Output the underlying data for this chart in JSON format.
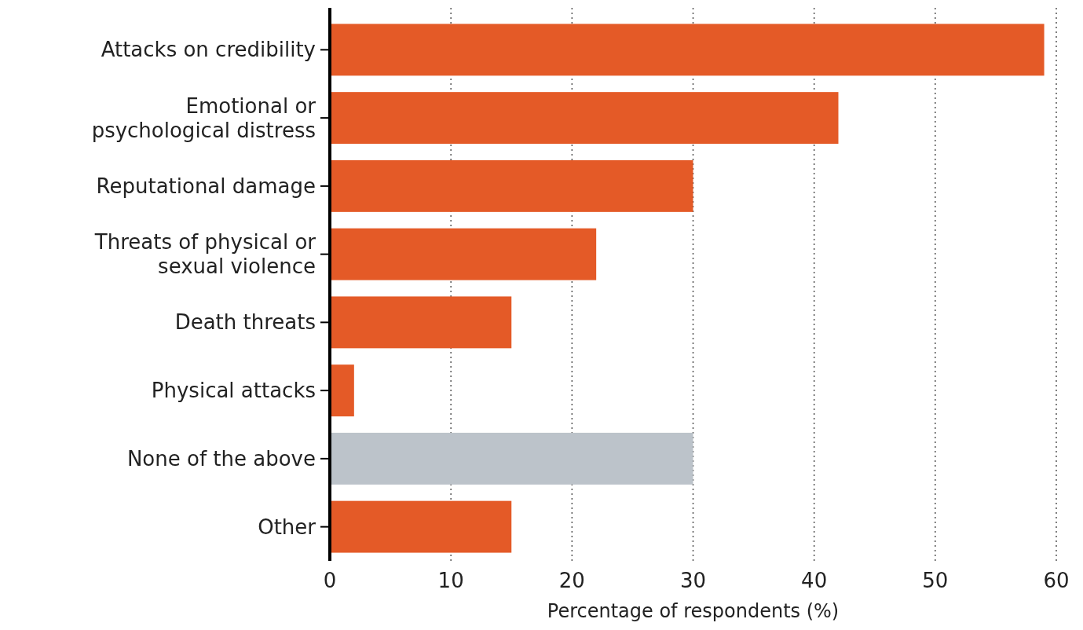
{
  "chart_data": {
    "type": "bar",
    "orientation": "horizontal",
    "xlabel": "Percentage of respondents (%)",
    "categories": [
      "Attacks on credibility",
      "Emotional or psychological distress",
      "Reputational damage",
      "Threats of physical or sexual violence",
      "Death threats",
      "Physical attacks",
      "None of the above",
      "Other"
    ],
    "values": [
      59,
      42,
      30,
      22,
      15,
      2,
      30,
      15
    ],
    "colors": [
      "#e45a27",
      "#e45a27",
      "#e45a27",
      "#e45a27",
      "#e45a27",
      "#e45a27",
      "#bcc3ca",
      "#e45a27"
    ],
    "xlim": [
      0,
      60
    ],
    "xticks": [
      0,
      10,
      20,
      30,
      40,
      50,
      60
    ],
    "grid": "x"
  }
}
